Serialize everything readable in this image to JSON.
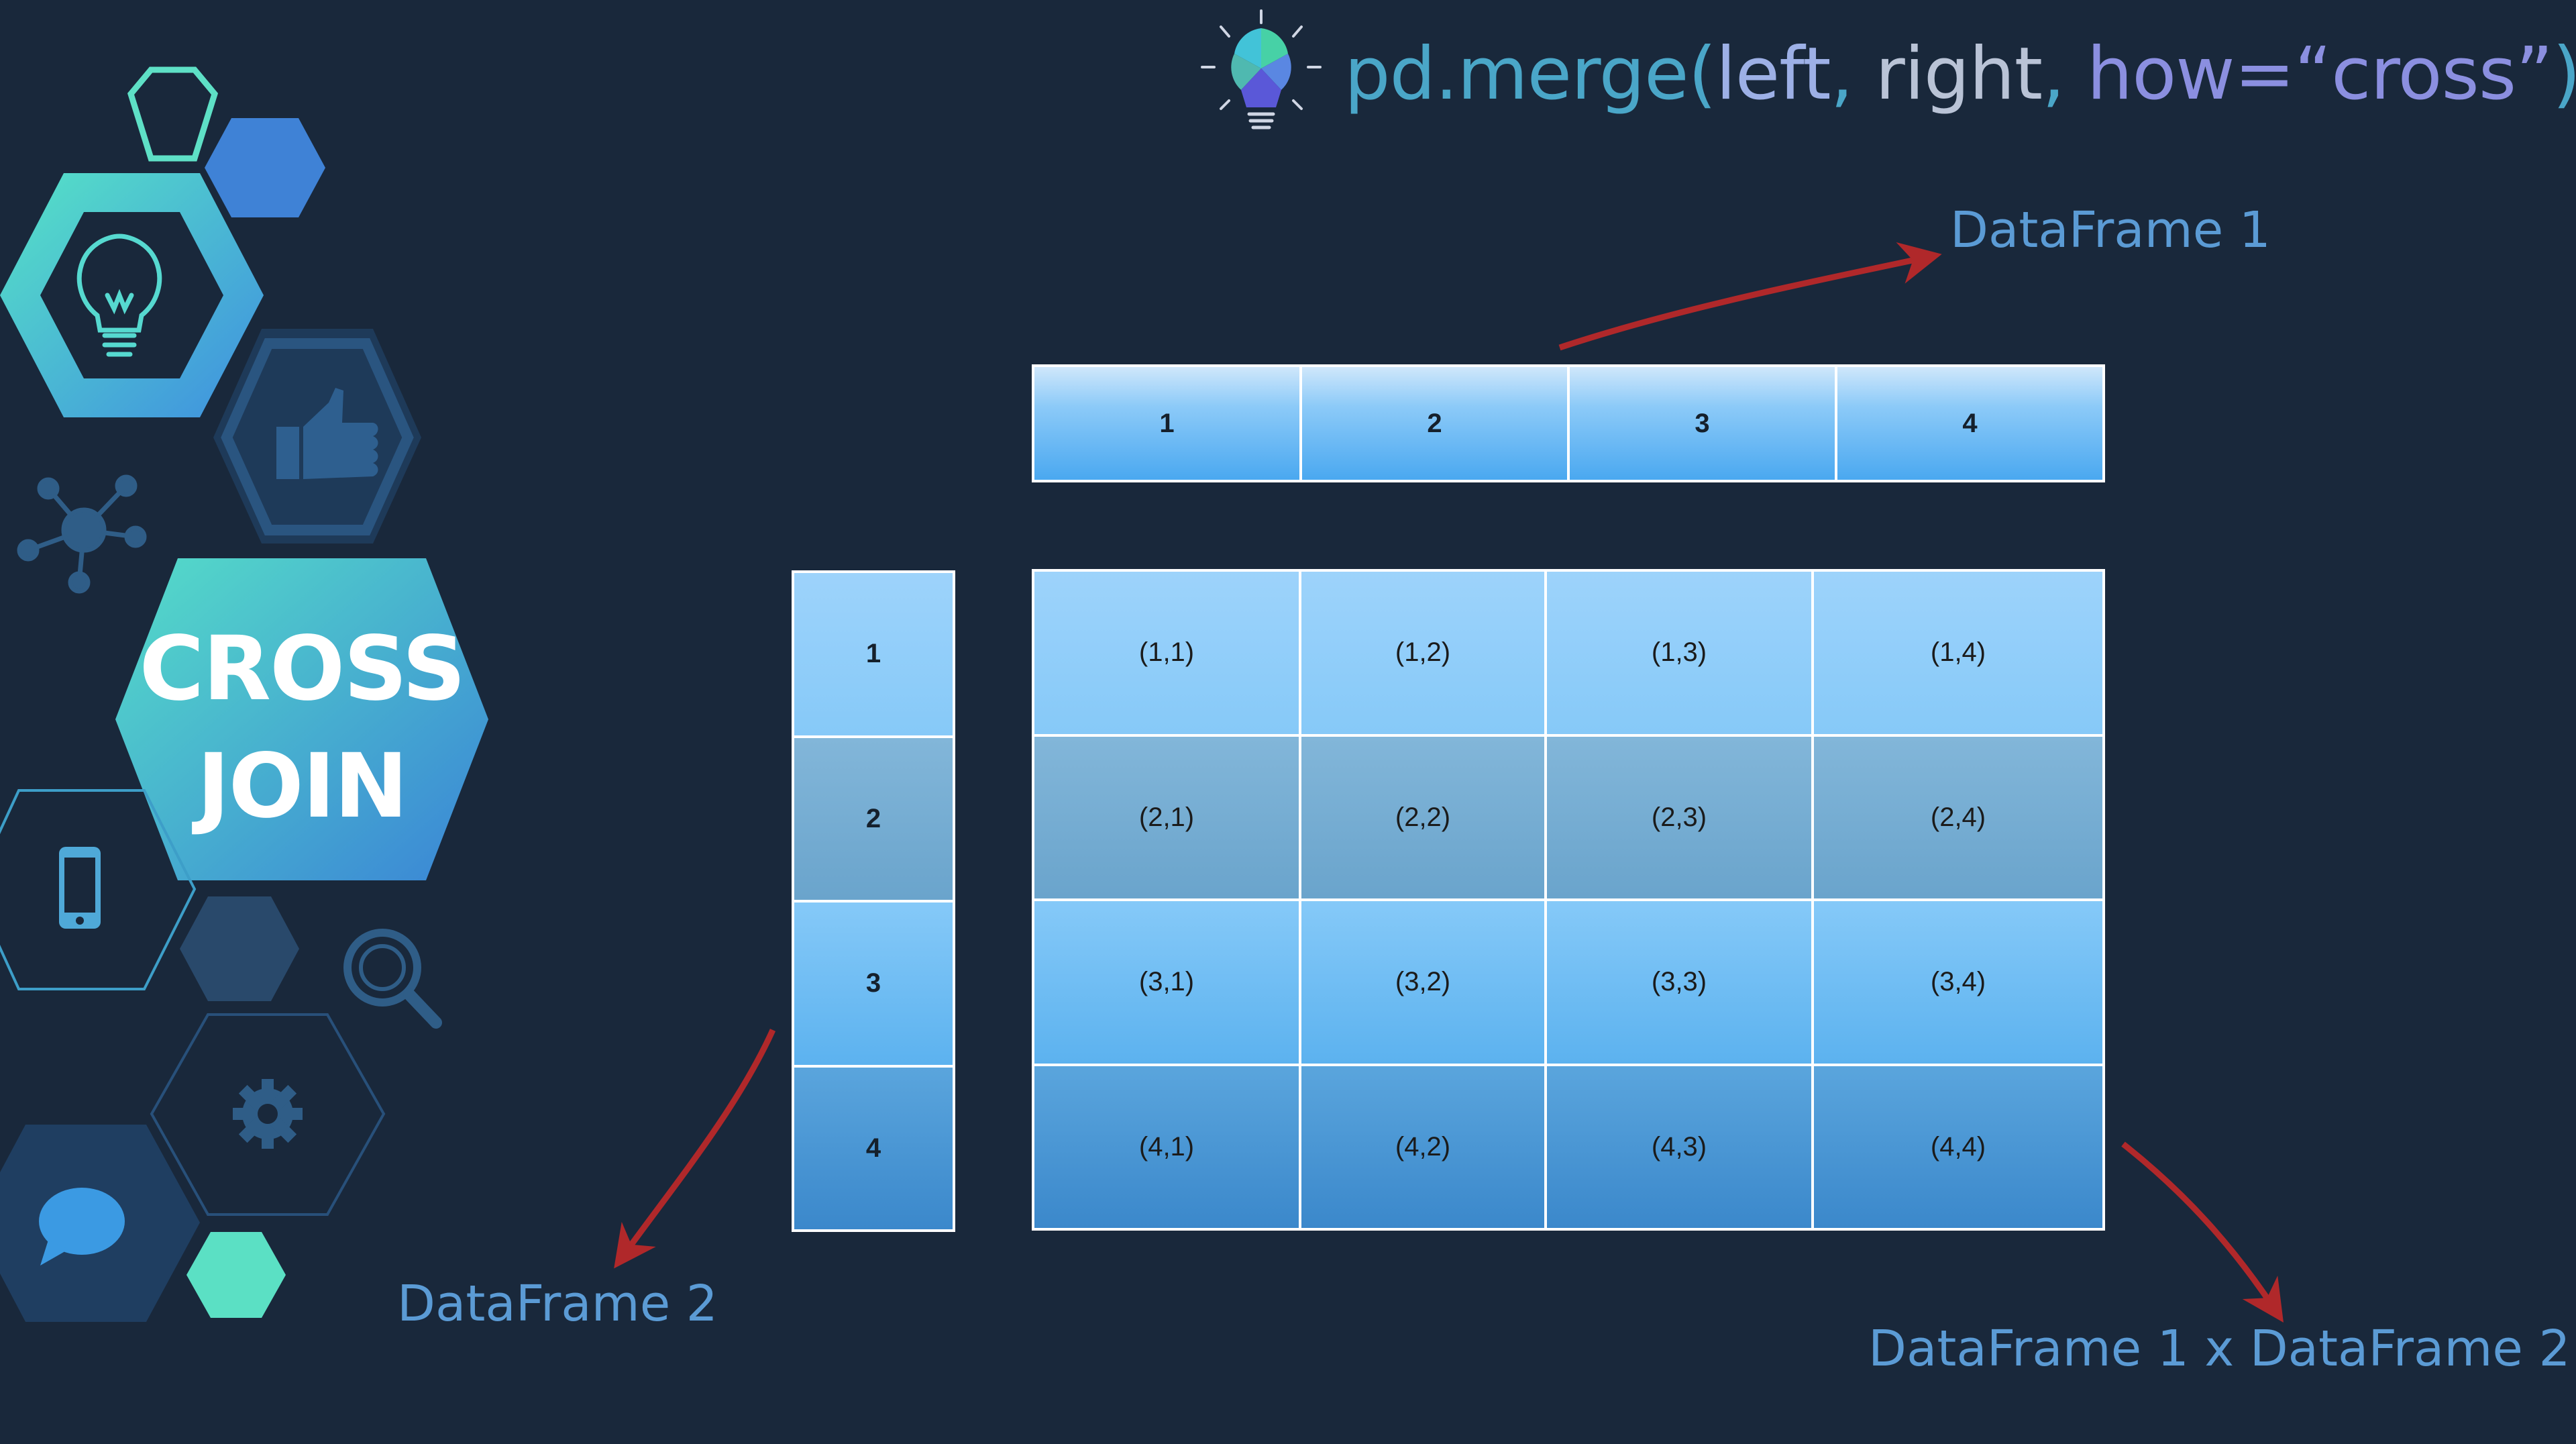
{
  "title": {
    "fn": "pd.merge(",
    "left": "left",
    "sep1": ", ",
    "right": "right",
    "sep2": ", ",
    "how": "how=“cross”",
    "close": ")"
  },
  "badge": {
    "line1": "CROSS",
    "line2": "JOIN"
  },
  "labels": {
    "df1": "DataFrame 1",
    "df2": "DataFrame 2",
    "result": "DataFrame 1 x DataFrame 2"
  },
  "df1_values": [
    "1",
    "2",
    "3",
    "4"
  ],
  "df2_values": [
    "1",
    "2",
    "3",
    "4"
  ],
  "result_rows": [
    [
      "(1,1)",
      "(1,2)",
      "(1,3)",
      "(1,4)"
    ],
    [
      "(2,1)",
      "(2,2)",
      "(2,3)",
      "(2,4)"
    ],
    [
      "(3,1)",
      "(3,2)",
      "(3,3)",
      "(3,4)"
    ],
    [
      "(4,1)",
      "(4,2)",
      "(4,3)",
      "(4,4)"
    ]
  ],
  "colors": {
    "background": "#19283b",
    "arrow": "#b0282a",
    "label": "#5b9bd5"
  },
  "icons": [
    "lightbulb-icon",
    "thumbs-up-icon",
    "network-icon",
    "smartphone-icon",
    "magnifier-icon",
    "gear-icon",
    "chat-bubble-icon"
  ]
}
